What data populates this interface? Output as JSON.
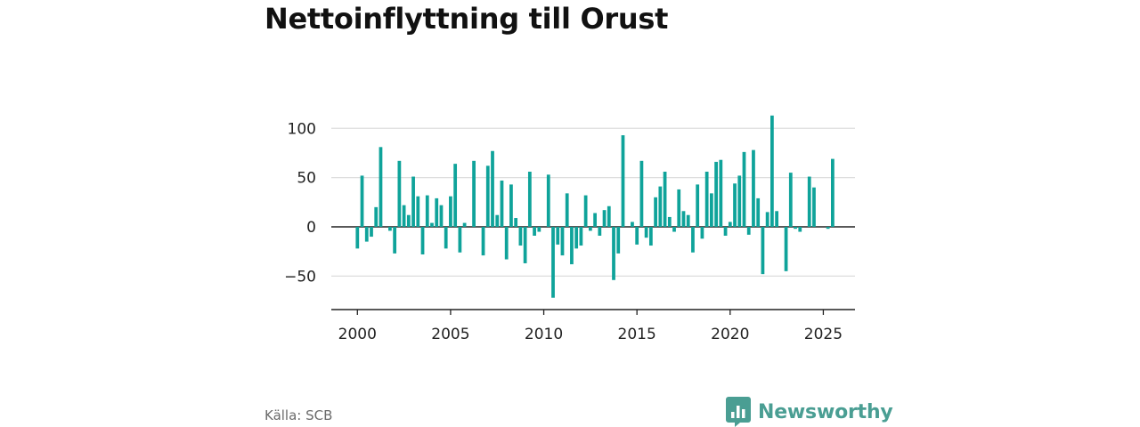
{
  "title": "Nettoinflyttning till Orust",
  "source": "Källa: SCB",
  "brand": {
    "name": "Newsworthy",
    "icon": "bar-chart-icon",
    "color": "#4a9e93"
  },
  "colors": {
    "bar": "#0fa39a",
    "grid": "#dddddd",
    "zero_line": "#222222"
  },
  "chart_data": {
    "type": "bar",
    "x_start": 2000,
    "x_step": 0.25,
    "values": [
      -22,
      52,
      -15,
      -10,
      20,
      81,
      0,
      -4,
      -27,
      67,
      22,
      12,
      51,
      31,
      -28,
      32,
      4,
      29,
      22,
      -22,
      31,
      64,
      -26,
      4,
      0,
      67,
      0,
      -29,
      62,
      77,
      12,
      47,
      -33,
      43,
      9,
      -19,
      -37,
      56,
      -9,
      -5,
      0,
      53,
      -72,
      -18,
      -29,
      34,
      -38,
      -22,
      -19,
      32,
      -4,
      14,
      -9,
      17,
      21,
      -54,
      -27,
      93,
      0,
      5,
      -18,
      67,
      -11,
      -19,
      30,
      41,
      56,
      10,
      -5,
      38,
      16,
      12,
      -26,
      43,
      -12,
      56,
      34,
      66,
      68,
      -9,
      5,
      44,
      52,
      76,
      -8,
      78,
      29,
      -48,
      15,
      113,
      16,
      0,
      -45,
      55,
      -2,
      -5,
      0,
      51,
      40,
      0,
      0,
      -2,
      69
    ],
    "x_ticks": [
      2000,
      2005,
      2010,
      2015,
      2020,
      2025
    ],
    "y_ticks": [
      -50,
      0,
      50,
      100
    ],
    "y_tick_labels": [
      "−50",
      "0",
      "50",
      "100"
    ],
    "xlim": [
      1998.6,
      2026.7
    ],
    "ylim": [
      -84,
      140
    ],
    "grid": true
  }
}
